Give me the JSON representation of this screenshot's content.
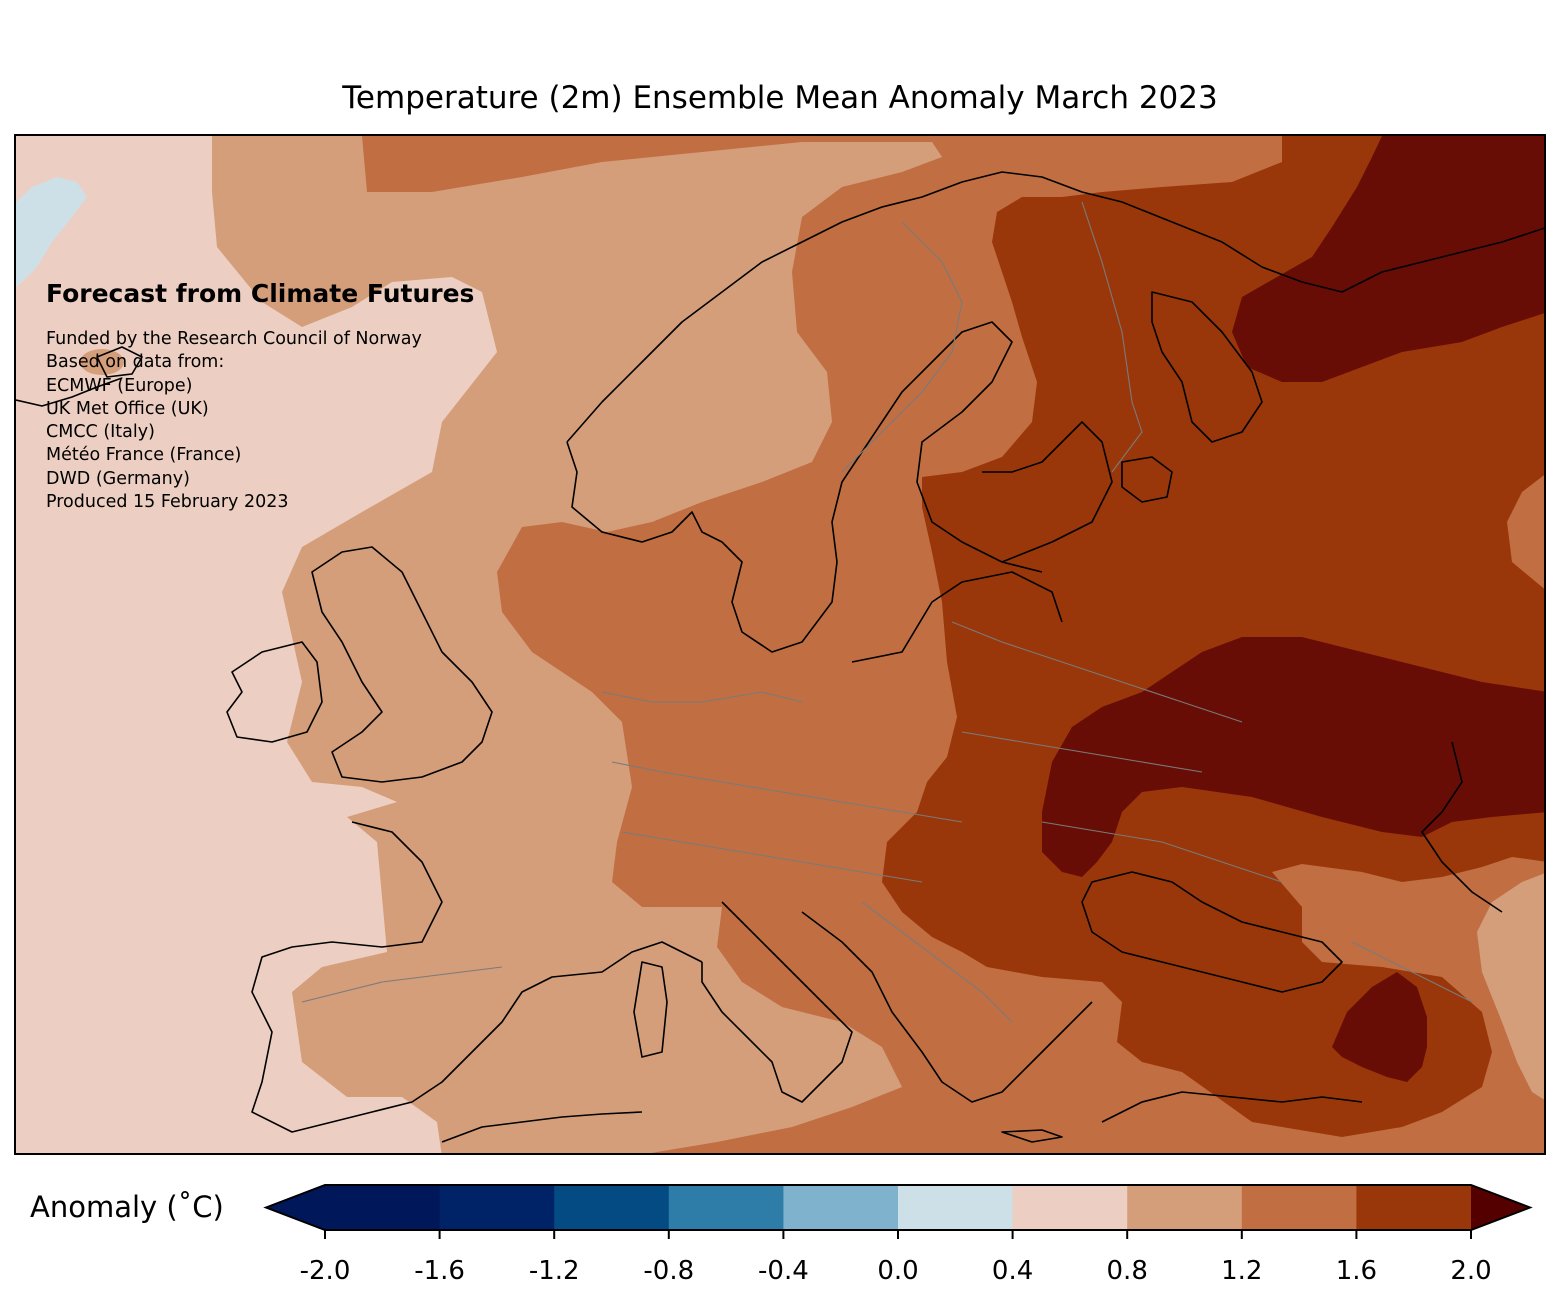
{
  "title": "Temperature (2m) Ensemble Mean Anomaly March 2023",
  "info": {
    "heading": "Forecast from Climate Futures",
    "lines": [
      "Funded by the Research Council of Norway",
      "Based on data from:",
      "ECMWF (Europe)",
      "UK Met Office (UK)",
      "CMCC (Italy)",
      "Météo France (France)",
      "DWD (Germany)",
      "Produced 15 February 2023"
    ]
  },
  "colorbar": {
    "label": "Anomaly (˚C)",
    "ticks": [
      "-2.0",
      "-1.6",
      "-1.2",
      "-0.8",
      "-0.4",
      "0.0",
      "0.4",
      "0.8",
      "1.2",
      "1.6",
      "2.0"
    ],
    "colors": [
      "#00185a",
      "#002368",
      "#044a83",
      "#2e7ca8",
      "#7fb2cd",
      "#cde0e8",
      "#eccfc2",
      "#d59e7b",
      "#c16f42",
      "#9a370a",
      "#680d06",
      "#550000"
    ],
    "under_color": "#00185a",
    "over_color": "#550000"
  },
  "chart_data": {
    "type": "heatmap",
    "title": "Temperature (2m) Ensemble Mean Anomaly March 2023",
    "variable": "Temperature (2m) anomaly",
    "unit": "˚C",
    "levels": [
      -2.0,
      -1.6,
      -1.2,
      -0.8,
      -0.4,
      0.0,
      0.4,
      0.8,
      1.2,
      1.6,
      2.0
    ],
    "colorbar_label": "Anomaly (˚C)",
    "extend": "both"
  }
}
